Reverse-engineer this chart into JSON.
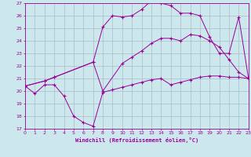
{
  "xlabel": "Windchill (Refroidissement éolien,°C)",
  "background_color": "#cce8ec",
  "grid_color": "#aabbcc",
  "line_color": "#990099",
  "xlim": [
    0,
    23
  ],
  "ylim": [
    17,
    27
  ],
  "yticks": [
    17,
    18,
    19,
    20,
    21,
    22,
    23,
    24,
    25,
    26,
    27
  ],
  "xticks": [
    0,
    1,
    2,
    3,
    4,
    5,
    6,
    7,
    8,
    9,
    10,
    11,
    12,
    13,
    14,
    15,
    16,
    17,
    18,
    19,
    20,
    21,
    22,
    23
  ],
  "line1_x": [
    0,
    1,
    2,
    3,
    4,
    5,
    6,
    7,
    8,
    9,
    10,
    11,
    12,
    13,
    14,
    15,
    16,
    17,
    18,
    19,
    20,
    21,
    22,
    23
  ],
  "line1_y": [
    20.4,
    19.8,
    20.5,
    20.5,
    19.6,
    18.0,
    17.5,
    17.2,
    19.9,
    20.1,
    20.3,
    20.5,
    20.7,
    20.9,
    21.0,
    20.5,
    20.7,
    20.9,
    21.1,
    21.2,
    21.2,
    21.1,
    21.1,
    21.0
  ],
  "line2_x": [
    0,
    2,
    3,
    7,
    8,
    9,
    10,
    11,
    12,
    13,
    14,
    15,
    16,
    17,
    18,
    19,
    20,
    21,
    22,
    23
  ],
  "line2_y": [
    20.4,
    20.8,
    21.1,
    22.3,
    25.1,
    26.0,
    25.9,
    26.0,
    26.5,
    27.2,
    27.0,
    26.8,
    26.2,
    26.2,
    26.0,
    24.3,
    23.0,
    23.0,
    25.9,
    21.0
  ],
  "line3_x": [
    0,
    2,
    3,
    7,
    8,
    10,
    11,
    12,
    13,
    14,
    15,
    16,
    17,
    18,
    19,
    20,
    21,
    22,
    23
  ],
  "line3_y": [
    20.4,
    20.8,
    21.1,
    22.3,
    20.0,
    22.2,
    22.7,
    23.2,
    23.8,
    24.2,
    24.2,
    24.0,
    24.5,
    24.4,
    24.0,
    23.5,
    22.5,
    21.5,
    21.0
  ]
}
